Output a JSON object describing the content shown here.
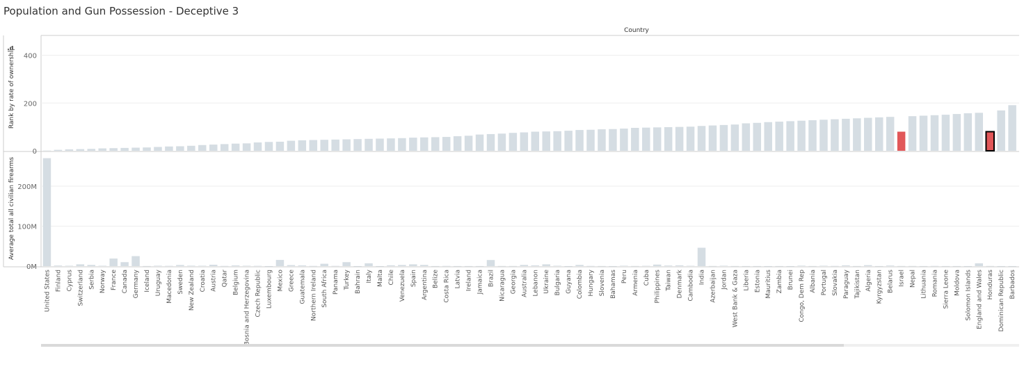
{
  "sheet": {
    "title": "Population and Gun Possession - Deceptive 3"
  },
  "colors": {
    "bar": "#d5dde3",
    "highlight": "#e15759",
    "selected_outline": "#000000",
    "grid": "#eeeeee",
    "axis": "#cccccc"
  },
  "chart_data": [
    {
      "type": "bar",
      "column_header": "Country",
      "ylabel": "Rank by rate of ownership",
      "ylim": [
        0,
        480
      ],
      "yticks": [
        "0",
        "200",
        "400"
      ],
      "highlighted": [
        "Israel",
        "Honduras"
      ],
      "selected": "Honduras"
    },
    {
      "type": "bar",
      "ylabel": "Average total all civilian firearms",
      "ylim": [
        0,
        285000000
      ],
      "yticks": [
        "0M",
        "100M",
        "200M"
      ]
    }
  ],
  "categories": [
    "United States",
    "Finland",
    "Cyprus",
    "Switzerland",
    "Serbia",
    "Norway",
    "France",
    "Canada",
    "Germany",
    "Iceland",
    "Uruguay",
    "Macedonia",
    "Sweden",
    "New Zealand",
    "Croatia",
    "Austria",
    "Qatar",
    "Belgium",
    "Bosnia and Herzegovina",
    "Czech Republic",
    "Luxembourg",
    "Mexico",
    "Greece",
    "Guatemala",
    "Northern Ireland",
    "South Africa",
    "Panama",
    "Turkey",
    "Bahrain",
    "Italy",
    "Malta",
    "Chile",
    "Venezuela",
    "Spain",
    "Argentina",
    "Belize",
    "Costa Rica",
    "Latvia",
    "Ireland",
    "Jamaica",
    "Brazil",
    "Nicaragua",
    "Georgia",
    "Australia",
    "Lebanon",
    "Ukraine",
    "Bulgaria",
    "Guyana",
    "Colombia",
    "Hungary",
    "Slovenia",
    "Bahamas",
    "Peru",
    "Armenia",
    "Cuba",
    "Philippines",
    "Taiwan",
    "Denmark",
    "Cambodia",
    "India",
    "Azerbaijan",
    "Jordan",
    "West Bank & Gaza",
    "Liberia",
    "Estonia",
    "Mauritius",
    "Zambia",
    "Brunei",
    "Congo, Dem Rep",
    "Albania",
    "Portugal",
    "Slovakia",
    "Paraguay",
    "Tajikistan",
    "Algeria",
    "Kyrgyzstan",
    "Belarus",
    "Israel",
    "Nepal",
    "Lithuania",
    "Romania",
    "Sierra Leone",
    "Moldova",
    "Solomon Islands",
    "England and Wales",
    "Honduras",
    "Dominican Republic",
    "Barbados"
  ],
  "rank_values": [
    1,
    4,
    6,
    7,
    8,
    10,
    11,
    12,
    13,
    14,
    16,
    18,
    19,
    21,
    24,
    26,
    28,
    30,
    31,
    35,
    37,
    38,
    42,
    44,
    45,
    46,
    47,
    48,
    49,
    50,
    51,
    52,
    53,
    55,
    56,
    57,
    58,
    61,
    63,
    68,
    70,
    72,
    75,
    77,
    80,
    81,
    82,
    84,
    87,
    88,
    90,
    91,
    93,
    96,
    97,
    98,
    99,
    100,
    101,
    104,
    106,
    108,
    110,
    115,
    117,
    120,
    122,
    124,
    126,
    128,
    130,
    132,
    134,
    136,
    138,
    140,
    142,
    80,
    145,
    147,
    149,
    151,
    154,
    157,
    159,
    80,
    169,
    191
  ],
  "firearms_values": [
    270000000,
    1500000,
    1000000,
    4500000,
    3000000,
    1000000,
    19000000,
    10000000,
    25000000,
    300000,
    1100000,
    700000,
    2800000,
    1200000,
    1000000,
    3500000,
    500000,
    1800000,
    1000000,
    700000,
    100000,
    15500000,
    2500000,
    1800000,
    500000,
    5900000,
    600000,
    10000000,
    100000,
    7000000,
    100000,
    2100000,
    2900000,
    4500000,
    3000000,
    200000,
    500000,
    200000,
    200000,
    200000,
    15300000,
    400000,
    400000,
    3000000,
    1900000,
    4500000,
    1000000,
    100000,
    3000000,
    500000,
    300000,
    100000,
    1000000,
    400000,
    800000,
    3900000,
    1500000,
    2000000,
    900000,
    46000000,
    400000,
    1000000,
    300000,
    200000,
    200000,
    100000,
    200000,
    100000,
    1200000,
    300000,
    1000000,
    500000,
    2000000,
    300000,
    2400000,
    200000,
    1500000,
    400000,
    400000,
    200000,
    500000,
    200000,
    200000,
    100000,
    7000000,
    400000,
    100000,
    100000
  ]
}
